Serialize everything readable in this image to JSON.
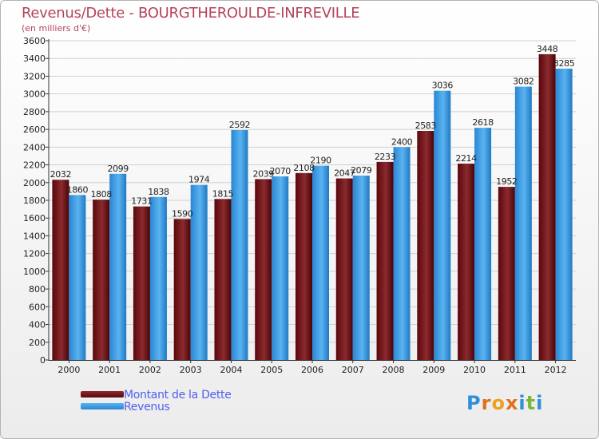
{
  "title": "Revenus/Dette - BOURGTHEROULDE-INFREVILLE",
  "subtitle": "(en milliers d'€)",
  "colors": {
    "dette": "#6e0f14",
    "revenus": "#3d9be3",
    "title": "#b4435a",
    "legend_text": "#4f5ff0"
  },
  "chart_data": {
    "type": "bar",
    "title": "Revenus/Dette - BOURGTHEROULDE-INFREVILLE",
    "subtitle": "(en milliers d'€)",
    "categories": [
      "2000",
      "2001",
      "2002",
      "2003",
      "2004",
      "2005",
      "2006",
      "2007",
      "2008",
      "2009",
      "2010",
      "2011",
      "2012"
    ],
    "series": [
      {
        "name": "Montant de la Dette",
        "values": [
          2032,
          1808,
          1731,
          1590,
          1815,
          2039,
          2108,
          2047,
          2233,
          2583,
          2214,
          1952,
          3448
        ]
      },
      {
        "name": "Revenus",
        "values": [
          1860,
          2099,
          1838,
          1974,
          2592,
          2070,
          2190,
          2079,
          2400,
          3036,
          2618,
          3082,
          3285
        ]
      }
    ],
    "ylim": [
      0,
      3600
    ],
    "ytick_step": 200,
    "grid": true,
    "legend_position": "bottom-left"
  },
  "legend": {
    "items": [
      "Montant de la Dette",
      "Revenus"
    ]
  },
  "logo": {
    "letters": [
      "P",
      "r",
      "o",
      "x",
      "i",
      "t",
      "i"
    ]
  }
}
